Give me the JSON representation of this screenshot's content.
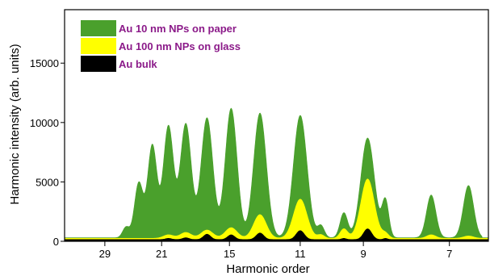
{
  "chart_data": {
    "type": "area",
    "title": "",
    "xlabel": "Harmonic order",
    "ylabel": "Harmonic intensity (arb. units)",
    "x_reversed": true,
    "x_ticks": [
      "29",
      "21",
      "15",
      "11",
      "9",
      "7"
    ],
    "y_ticks": [
      "0",
      "5000",
      "10000",
      "15000"
    ],
    "ylim": [
      0,
      19500
    ],
    "legend_position": "top-left",
    "peaks": [
      {
        "position": 0.145,
        "width": 0.008,
        "values": {
          "Au 10 nm NPs on paper": 900,
          "Au 100 nm NPs on glass": 0,
          "Au bulk": 0
        }
      },
      {
        "position": 0.175,
        "width": 0.01,
        "values": {
          "Au 10 nm NPs on paper": 4600,
          "Au 100 nm NPs on glass": 0,
          "Au bulk": 0
        }
      },
      {
        "position": 0.207,
        "width": 0.011,
        "values": {
          "Au 10 nm NPs on paper": 7800,
          "Au 100 nm NPs on glass": 0,
          "Au bulk": 0
        }
      },
      {
        "position": 0.245,
        "width": 0.012,
        "values": {
          "Au 10 nm NPs on paper": 9400,
          "Au 100 nm NPs on glass": 300,
          "Au bulk": 100
        }
      },
      {
        "position": 0.286,
        "width": 0.013,
        "values": {
          "Au 10 nm NPs on paper": 9600,
          "Au 100 nm NPs on glass": 500,
          "Au bulk": 150
        }
      },
      {
        "position": 0.336,
        "width": 0.014,
        "values": {
          "Au 10 nm NPs on paper": 10100,
          "Au 100 nm NPs on glass": 700,
          "Au bulk": 450
        }
      },
      {
        "position": 0.393,
        "width": 0.014,
        "values": {
          "Au 10 nm NPs on paper": 10900,
          "Au 100 nm NPs on glass": 900,
          "Au bulk": 400
        }
      },
      {
        "position": 0.461,
        "width": 0.015,
        "values": {
          "Au 10 nm NPs on paper": 10500,
          "Au 100 nm NPs on glass": 2000,
          "Au bulk": 550
        }
      },
      {
        "position": 0.556,
        "width": 0.016,
        "values": {
          "Au 10 nm NPs on paper": 10300,
          "Au 100 nm NPs on glass": 3300,
          "Au bulk": 750
        }
      },
      {
        "position": 0.605,
        "width": 0.008,
        "values": {
          "Au 10 nm NPs on paper": 1000,
          "Au 100 nm NPs on glass": 300,
          "Au bulk": 0
        }
      },
      {
        "position": 0.659,
        "width": 0.009,
        "values": {
          "Au 10 nm NPs on paper": 2100,
          "Au 100 nm NPs on glass": 800,
          "Au bulk": 100
        }
      },
      {
        "position": 0.715,
        "width": 0.016,
        "values": {
          "Au 10 nm NPs on paper": 8400,
          "Au 100 nm NPs on glass": 5000,
          "Au bulk": 900
        }
      },
      {
        "position": 0.757,
        "width": 0.008,
        "values": {
          "Au 10 nm NPs on paper": 3100,
          "Au 100 nm NPs on glass": 400,
          "Au bulk": 100
        }
      },
      {
        "position": 0.865,
        "width": 0.011,
        "values": {
          "Au 10 nm NPs on paper": 3600,
          "Au 100 nm NPs on glass": 300,
          "Au bulk": 0
        }
      },
      {
        "position": 0.953,
        "width": 0.012,
        "values": {
          "Au 10 nm NPs on paper": 4400,
          "Au 100 nm NPs on glass": 200,
          "Au bulk": 0
        }
      }
    ],
    "series": [
      {
        "name": "Au 10 nm NPs on paper",
        "color": "#4aa02c"
      },
      {
        "name": "Au 100 nm NPs on glass",
        "color": "#ffff00"
      },
      {
        "name": "Au bulk",
        "color": "#000000"
      }
    ]
  }
}
